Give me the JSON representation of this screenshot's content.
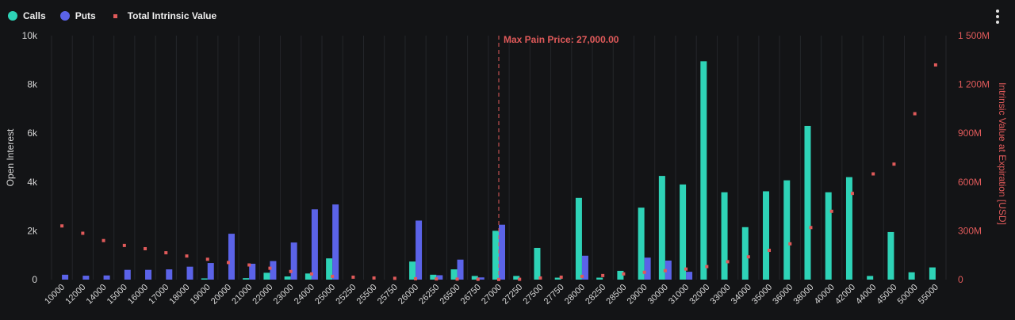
{
  "legend": {
    "calls_label": "Calls",
    "puts_label": "Puts",
    "tiv_label": "Total Intrinsic Value"
  },
  "colors": {
    "calls": "#2ed3b7",
    "puts": "#5b63e8",
    "tiv": "#e05a5a",
    "annotation": "#e05a5a",
    "background": "#131416"
  },
  "menu_icon": "more-vertical-icon",
  "chart_data": {
    "type": "bar",
    "categories": [
      "10000",
      "12000",
      "14000",
      "15000",
      "16000",
      "17000",
      "18000",
      "19000",
      "20000",
      "21000",
      "22000",
      "23000",
      "24000",
      "25000",
      "25250",
      "25500",
      "25750",
      "26000",
      "26250",
      "26500",
      "26750",
      "27000",
      "27250",
      "27500",
      "27750",
      "28000",
      "28250",
      "28500",
      "29000",
      "30000",
      "31000",
      "32000",
      "33000",
      "34000",
      "35000",
      "36000",
      "38000",
      "40000",
      "42000",
      "44000",
      "45000",
      "50000",
      "55000"
    ],
    "series": [
      {
        "name": "Calls",
        "type": "bar",
        "axis": "left",
        "values": [
          0,
          0,
          0,
          0,
          0,
          0,
          0,
          50,
          0,
          60,
          280,
          130,
          250,
          870,
          0,
          0,
          0,
          740,
          200,
          420,
          150,
          2000,
          150,
          1300,
          80,
          3350,
          80,
          360,
          2950,
          4250,
          3900,
          8950,
          3580,
          2150,
          3620,
          4070,
          6300,
          3580,
          4200,
          150,
          1950,
          300,
          500
        ]
      },
      {
        "name": "Puts",
        "type": "bar",
        "axis": "left",
        "values": [
          200,
          160,
          170,
          400,
          400,
          420,
          530,
          680,
          1880,
          650,
          760,
          1520,
          2880,
          3080,
          0,
          0,
          0,
          2420,
          180,
          820,
          90,
          2250,
          0,
          0,
          0,
          980,
          0,
          0,
          900,
          780,
          320,
          0,
          0,
          0,
          0,
          0,
          0,
          0,
          0,
          0,
          0,
          0,
          0
        ]
      },
      {
        "name": "Total Intrinsic Value",
        "type": "scatter",
        "axis": "right",
        "unit": "M",
        "values": [
          330,
          285,
          240,
          210,
          190,
          165,
          145,
          125,
          105,
          90,
          70,
          50,
          35,
          20,
          15,
          10,
          8,
          5,
          4,
          3,
          2,
          1,
          2,
          10,
          15,
          20,
          25,
          35,
          45,
          55,
          65,
          80,
          110,
          140,
          180,
          220,
          320,
          420,
          530,
          650,
          710,
          1020,
          1320
        ]
      }
    ],
    "ylim": [
      0,
      10000
    ],
    "y_ticks": [
      0,
      2000,
      4000,
      6000,
      8000,
      10000
    ],
    "y_tick_labels": [
      "0",
      "2k",
      "4k",
      "6k",
      "8k",
      "10k"
    ],
    "y2lim": [
      0,
      1500
    ],
    "y2_ticks": [
      0,
      300,
      600,
      900,
      1200,
      1500
    ],
    "y2_tick_labels": [
      "0",
      "300M",
      "600M",
      "900M",
      "1 200M",
      "1 500M"
    ],
    "ylabel": "Open Interest",
    "y2label": "Intrinsic Value at Expiration [USD]",
    "xlabel": "",
    "grid": "vertical",
    "legend_position": "top-left",
    "annotations": [
      {
        "label": "Max Pain Price: 27,000.00",
        "category": "27000",
        "style": "dashed-vertical"
      }
    ]
  }
}
